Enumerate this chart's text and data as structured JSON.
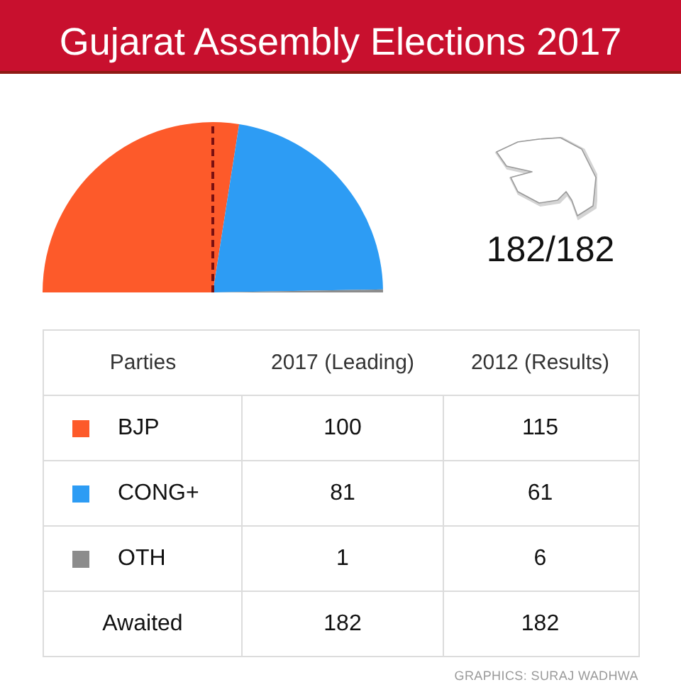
{
  "chart_data": [
    {
      "type": "pie",
      "title": "Gujarat Assembly Elections 2017",
      "categories": [
        "BJP",
        "CONG+",
        "OTH"
      ],
      "colors": [
        "#fd5a2a",
        "#2d9cf4",
        "#8c8c8c"
      ],
      "series": [
        {
          "name": "2017 (Leading)",
          "values": [
            100,
            81,
            1
          ]
        }
      ],
      "data_labels": true,
      "totals": [
        "182"
      ],
      "legend": "bottom",
      "legend_title": "Parties",
      "needle": "BJP",
      "annotations": [
        "182/182",
        "Awaited",
        "GRAPHICS: SURAJ WADHWA"
      ]
    },
    {
      "type": "other",
      "title": "2012 (Results)",
      "categories": [
        null,
        null,
        null
      ],
      "values": [
        115,
        61,
        6
      ],
      "data_labels": true,
      "totals": [
        "182"
      ]
    }
  ]
}
